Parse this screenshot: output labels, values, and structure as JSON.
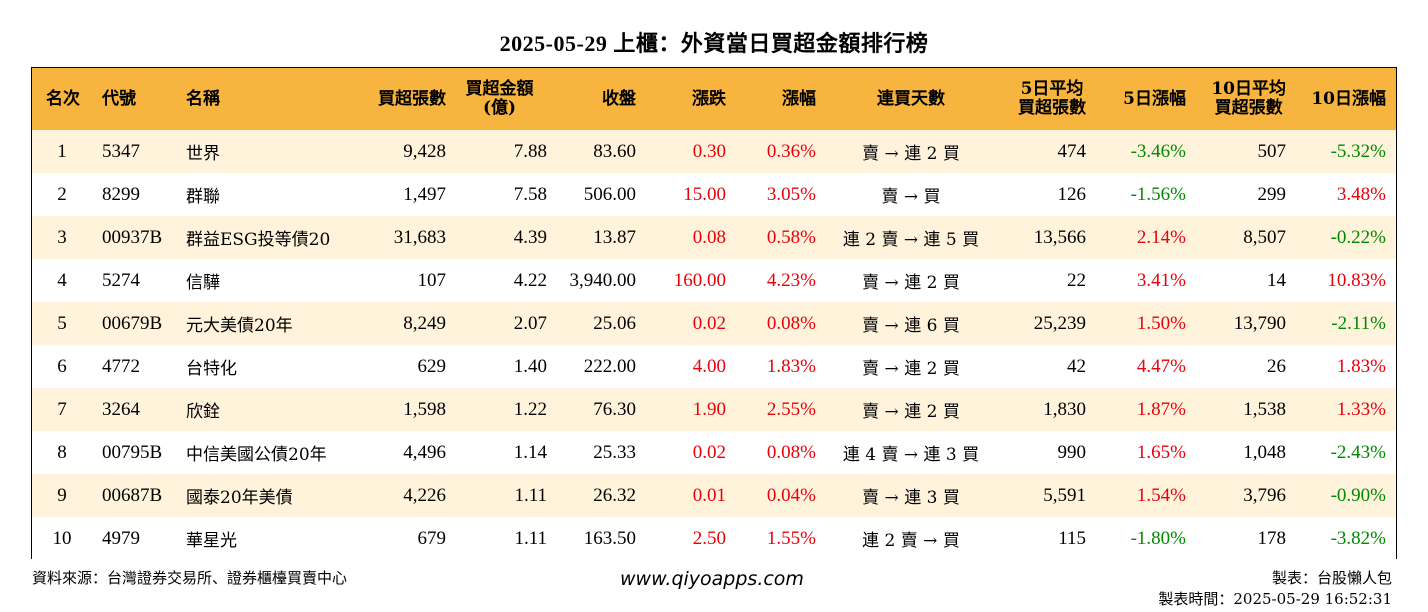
{
  "title": "2025-05-29 上櫃：外資當日買超金額排行榜",
  "headers": [
    "名次",
    "代號",
    "名稱",
    "買超張數",
    "買超金額\n(億)",
    "收盤",
    "漲跌",
    "漲幅",
    "連買天數",
    "5日平均\n買超張數",
    "5日漲幅",
    "10日平均\n買超張數",
    "10日漲幅"
  ],
  "rows": [
    {
      "rank": "1",
      "code": "5347",
      "name": "世界",
      "shares": "9,428",
      "amount": "7.88",
      "close": "83.60",
      "change": "0.30",
      "pct": "0.36%",
      "days": "賣 → 連 2 買",
      "avg5": "474",
      "pct5": "-3.46%",
      "avg10": "507",
      "pct10": "-5.32%"
    },
    {
      "rank": "2",
      "code": "8299",
      "name": "群聯",
      "shares": "1,497",
      "amount": "7.58",
      "close": "506.00",
      "change": "15.00",
      "pct": "3.05%",
      "days": "賣 → 買",
      "avg5": "126",
      "pct5": "-1.56%",
      "avg10": "299",
      "pct10": "3.48%"
    },
    {
      "rank": "3",
      "code": "00937B",
      "name": "群益ESG投等債20",
      "shares": "31,683",
      "amount": "4.39",
      "close": "13.87",
      "change": "0.08",
      "pct": "0.58%",
      "days": "連 2 賣 → 連 5 買",
      "avg5": "13,566",
      "pct5": "2.14%",
      "avg10": "8,507",
      "pct10": "-0.22%"
    },
    {
      "rank": "4",
      "code": "5274",
      "name": "信驊",
      "shares": "107",
      "amount": "4.22",
      "close": "3,940.00",
      "change": "160.00",
      "pct": "4.23%",
      "days": "賣 → 連 2 買",
      "avg5": "22",
      "pct5": "3.41%",
      "avg10": "14",
      "pct10": "10.83%"
    },
    {
      "rank": "5",
      "code": "00679B",
      "name": "元大美債20年",
      "shares": "8,249",
      "amount": "2.07",
      "close": "25.06",
      "change": "0.02",
      "pct": "0.08%",
      "days": "賣 → 連 6 買",
      "avg5": "25,239",
      "pct5": "1.50%",
      "avg10": "13,790",
      "pct10": "-2.11%"
    },
    {
      "rank": "6",
      "code": "4772",
      "name": "台特化",
      "shares": "629",
      "amount": "1.40",
      "close": "222.00",
      "change": "4.00",
      "pct": "1.83%",
      "days": "賣 → 連 2 買",
      "avg5": "42",
      "pct5": "4.47%",
      "avg10": "26",
      "pct10": "1.83%"
    },
    {
      "rank": "7",
      "code": "3264",
      "name": "欣銓",
      "shares": "1,598",
      "amount": "1.22",
      "close": "76.30",
      "change": "1.90",
      "pct": "2.55%",
      "days": "賣 → 連 2 買",
      "avg5": "1,830",
      "pct5": "1.87%",
      "avg10": "1,538",
      "pct10": "1.33%"
    },
    {
      "rank": "8",
      "code": "00795B",
      "name": "中信美國公債20年",
      "shares": "4,496",
      "amount": "1.14",
      "close": "25.33",
      "change": "0.02",
      "pct": "0.08%",
      "days": "連 4 賣 → 連 3 買",
      "avg5": "990",
      "pct5": "1.65%",
      "avg10": "1,048",
      "pct10": "-2.43%"
    },
    {
      "rank": "9",
      "code": "00687B",
      "name": "國泰20年美債",
      "shares": "4,226",
      "amount": "1.11",
      "close": "26.32",
      "change": "0.01",
      "pct": "0.04%",
      "days": "賣 → 連 3 買",
      "avg5": "5,591",
      "pct5": "1.54%",
      "avg10": "3,796",
      "pct10": "-0.90%"
    },
    {
      "rank": "10",
      "code": "4979",
      "name": "華星光",
      "shares": "679",
      "amount": "1.11",
      "close": "163.50",
      "change": "2.50",
      "pct": "1.55%",
      "days": "連 2 賣 → 買",
      "avg5": "115",
      "pct5": "-1.80%",
      "avg10": "178",
      "pct10": "-3.82%"
    }
  ],
  "footer": {
    "source": "資料來源：台灣證券交易所、證券櫃檯買賣中心",
    "website": "www.qiyoapps.com",
    "maker": "製表：台股懶人包",
    "made_time": "製表時間：2025-05-29 16:52:31"
  },
  "colors": {
    "header_bg": "#f7b53f",
    "odd_row_bg": "#fff3dc",
    "positive": "#e8000b",
    "negative": "#008a00"
  }
}
